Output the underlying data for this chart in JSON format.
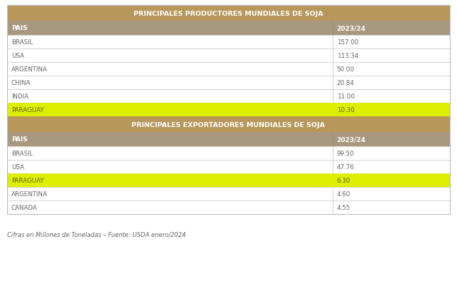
{
  "title1": "PRINCIPALES PRODUCTORES MUNDIALES DE SOJA",
  "title2": "PRINCIPALES EXPORTADORES MUNDIALES DE SOJA",
  "col_header": [
    "PAIS",
    "2023/24"
  ],
  "producers": [
    {
      "country": "BRASIL",
      "value": "157.00",
      "highlight": false
    },
    {
      "country": "USA",
      "value": "113.34",
      "highlight": false
    },
    {
      "country": "ARGENTINA",
      "value": "50.00",
      "highlight": false
    },
    {
      "country": "CHINA",
      "value": "20.84",
      "highlight": false
    },
    {
      "country": "INDIA",
      "value": "11.00",
      "highlight": false
    },
    {
      "country": "PARAGUAY",
      "value": "10.30",
      "highlight": true
    }
  ],
  "exporters": [
    {
      "country": "BRASIL",
      "value": "99.50",
      "highlight": false
    },
    {
      "country": "USA",
      "value": "47.76",
      "highlight": false
    },
    {
      "country": "PARAGUAY",
      "value": "6.30",
      "highlight": true
    },
    {
      "country": "ARGENTINA",
      "value": "4.60",
      "highlight": false
    },
    {
      "country": "CANADA",
      "value": "4.55",
      "highlight": false
    }
  ],
  "footnote": "Cifras en Millones de Toneladas – Fuente: USDA enero/2024",
  "color_title_bg": "#B8975A",
  "color_header_bg": "#A89880",
  "color_highlight": "#DDEE00",
  "color_white": "#FFFFFF",
  "color_separator": "#CCCCCC",
  "color_title_text": "#FFFFFF",
  "color_header_text": "#FFFFFF",
  "color_body_text": "#666666",
  "color_highlight_text": "#666600",
  "color_footnote_text": "#666666",
  "bg_color": "#FFFFFF",
  "fig_width": 6.4,
  "fig_height": 4.06,
  "dpi": 100
}
